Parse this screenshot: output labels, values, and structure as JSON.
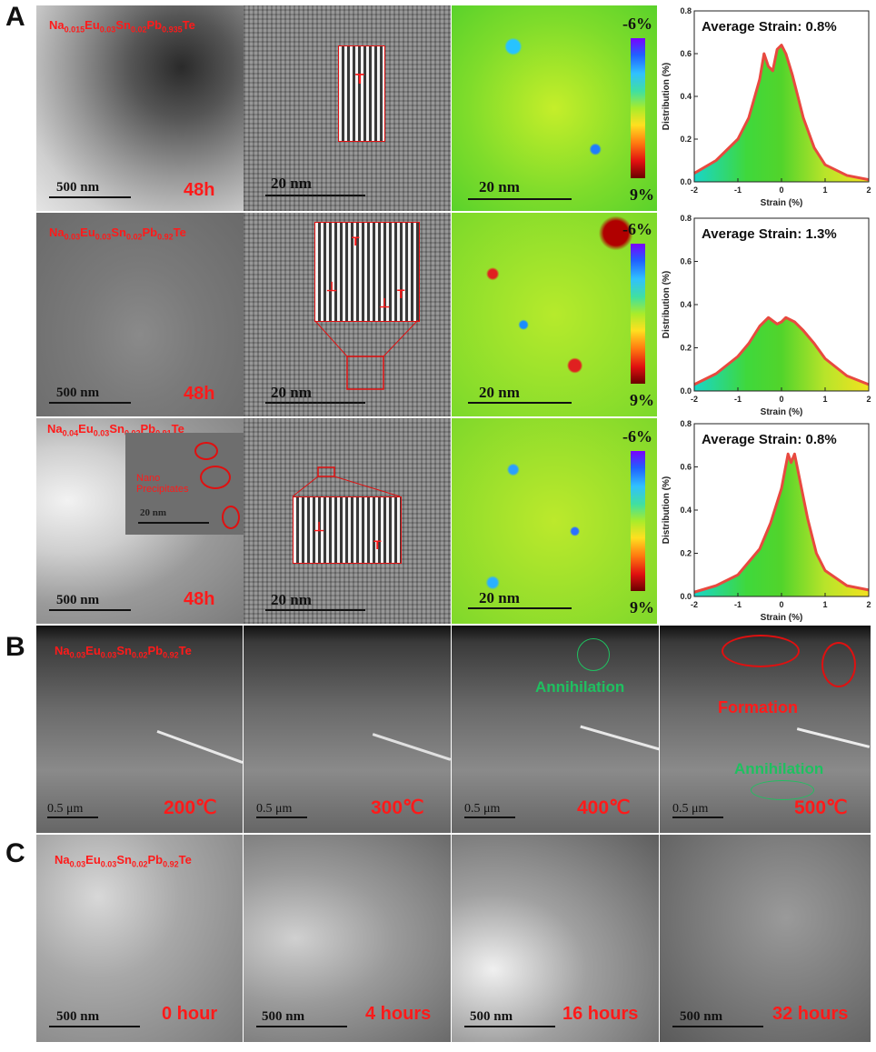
{
  "panel_letters": {
    "A": "A",
    "B": "B",
    "C": "C"
  },
  "panel_a": {
    "rows": [
      {
        "composition_html": "Na<sub>0.015</sub>Eu<sub>0.03</sub>Sn<sub>0.02</sub>Pb<sub>0.935</sub>Te",
        "time": "48h",
        "tem_scale": "500 nm",
        "hrtem_scale": "20 nm",
        "strain_scale": "20 nm",
        "cb_top": "-6%",
        "cb_bottom": "9%",
        "dislocation_marks": [
          "T"
        ],
        "average_strain": "Average Strain: 0.8%"
      },
      {
        "composition_html": "Na<sub>0.03</sub>Eu<sub>0.03</sub>Sn<sub>0.02</sub>Pb<sub>0.92</sub>Te",
        "time": "48h",
        "tem_scale": "500 nm",
        "hrtem_scale": "20 nm",
        "strain_scale": "20 nm",
        "cb_top": "-6%",
        "cb_bottom": "9%",
        "dislocation_marks": [
          "T",
          "⊥",
          "⊥",
          "T"
        ],
        "average_strain": "Average Strain: 1.3%"
      },
      {
        "composition_html": "Na<sub>0.04</sub>Eu<sub>0.03</sub>Sn<sub>0.02</sub>Pb<sub>0.91</sub>Te",
        "time": "48h",
        "tem_scale": "500 nm",
        "hrtem_scale": "20 nm",
        "strain_scale": "20 nm",
        "cb_top": "-6%",
        "cb_bottom": "9%",
        "inset_label": "Nano Precipitates",
        "inset_scale": "20 nm",
        "dislocation_marks": [
          "⊥",
          "T"
        ],
        "average_strain": "Average Strain: 0.8%"
      }
    ]
  },
  "panel_b": {
    "composition_html": "Na<sub>0.03</sub>Eu<sub>0.03</sub>Sn<sub>0.02</sub>Pb<sub>0.92</sub>Te",
    "scale": "0.5 μm",
    "temps": [
      "200℃",
      "300℃",
      "400℃",
      "500℃"
    ],
    "annihilation": "Annihilation",
    "formation": "Formation"
  },
  "panel_c": {
    "composition_html": "Na<sub>0.03</sub>Eu<sub>0.03</sub>Sn<sub>0.02</sub>Pb<sub>0.92</sub>Te",
    "scale": "500 nm",
    "times": [
      "0 hour",
      "4 hours",
      "16 hours",
      "32 hours"
    ]
  },
  "colors": {
    "red": "#ff1a1a",
    "green": "#1fc060",
    "curve": "#e8493f"
  },
  "chart_data": [
    {
      "type": "area",
      "title": "Average Strain: 0.8%",
      "xlabel": "Strain (%)",
      "ylabel": "Distribution (%)",
      "xlim": [
        -2,
        2
      ],
      "ylim": [
        0,
        0.8
      ],
      "xticks": [
        "-2",
        "-1",
        "0",
        "1",
        "2"
      ],
      "yticks": [
        "0.0",
        "0.2",
        "0.4",
        "0.6",
        "0.8"
      ],
      "x": [
        -2,
        -1.5,
        -1,
        -0.75,
        -0.5,
        -0.4,
        -0.3,
        -0.2,
        -0.1,
        0,
        0.1,
        0.25,
        0.5,
        0.75,
        1,
        1.5,
        2
      ],
      "y": [
        0.04,
        0.1,
        0.2,
        0.3,
        0.48,
        0.6,
        0.54,
        0.52,
        0.62,
        0.64,
        0.6,
        0.5,
        0.3,
        0.16,
        0.08,
        0.03,
        0.01
      ]
    },
    {
      "type": "area",
      "title": "Average Strain: 1.3%",
      "xlabel": "Strain (%)",
      "ylabel": "Distribution (%)",
      "xlim": [
        -2,
        2
      ],
      "ylim": [
        0,
        0.8
      ],
      "xticks": [
        "-2",
        "-1",
        "0",
        "1",
        "2"
      ],
      "yticks": [
        "0.0",
        "0.2",
        "0.4",
        "0.6",
        "0.8"
      ],
      "x": [
        -2,
        -1.5,
        -1,
        -0.75,
        -0.5,
        -0.3,
        -0.1,
        0,
        0.1,
        0.3,
        0.5,
        0.75,
        1,
        1.5,
        2
      ],
      "y": [
        0.03,
        0.08,
        0.16,
        0.22,
        0.3,
        0.34,
        0.31,
        0.32,
        0.34,
        0.32,
        0.28,
        0.22,
        0.15,
        0.07,
        0.03
      ]
    },
    {
      "type": "area",
      "title": "Average Strain: 0.8%",
      "xlabel": "Strain (%)",
      "ylabel": "Distribution (%)",
      "xlim": [
        -2,
        2
      ],
      "ylim": [
        0,
        0.8
      ],
      "xticks": [
        "-2",
        "-1",
        "0",
        "1",
        "2"
      ],
      "yticks": [
        "0.0",
        "0.2",
        "0.4",
        "0.6",
        "0.8"
      ],
      "x": [
        -2,
        -1.5,
        -1,
        -0.5,
        -0.25,
        0,
        0.15,
        0.22,
        0.3,
        0.4,
        0.6,
        0.8,
        1,
        1.5,
        2
      ],
      "y": [
        0.02,
        0.05,
        0.1,
        0.22,
        0.34,
        0.5,
        0.66,
        0.62,
        0.66,
        0.56,
        0.36,
        0.2,
        0.12,
        0.05,
        0.03
      ]
    }
  ]
}
